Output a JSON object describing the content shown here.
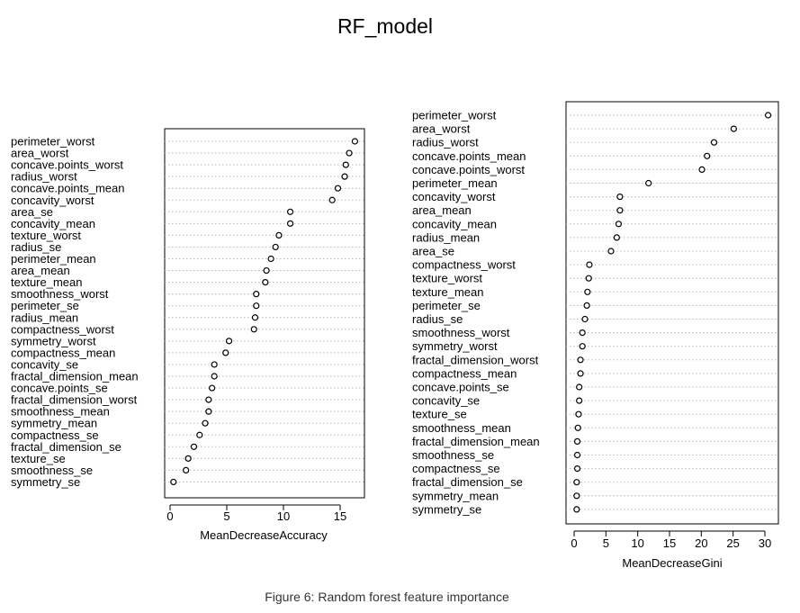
{
  "title": "RF_model",
  "caption": "Figure 6: Random forest feature importance",
  "chart_data": [
    {
      "type": "scatter",
      "subtype": "dotchart",
      "xlabel": "MeanDecreaseAccuracy",
      "xlim": [
        0,
        16.5
      ],
      "xticks": [
        0,
        5,
        10,
        15
      ],
      "grid": "dotted horizontal",
      "categories": [
        "perimeter_worst",
        "area_worst",
        "concave.points_worst",
        "radius_worst",
        "concave.points_mean",
        "concavity_worst",
        "area_se",
        "concavity_mean",
        "texture_worst",
        "radius_se",
        "perimeter_mean",
        "area_mean",
        "texture_mean",
        "smoothness_worst",
        "perimeter_se",
        "radius_mean",
        "compactness_worst",
        "symmetry_worst",
        "compactness_mean",
        "concavity_se",
        "fractal_dimension_mean",
        "concave.points_se",
        "fractal_dimension_worst",
        "smoothness_mean",
        "symmetry_mean",
        "compactness_se",
        "fractal_dimension_se",
        "texture_se",
        "smoothness_se",
        "symmetry_se"
      ],
      "values": [
        16.3,
        15.8,
        15.5,
        15.4,
        14.8,
        14.3,
        10.6,
        10.6,
        9.6,
        9.3,
        8.9,
        8.5,
        8.4,
        7.6,
        7.6,
        7.5,
        7.4,
        5.2,
        4.9,
        3.9,
        3.9,
        3.7,
        3.4,
        3.4,
        3.1,
        2.6,
        2.1,
        1.6,
        1.4,
        0.3
      ]
    },
    {
      "type": "scatter",
      "subtype": "dotchart",
      "xlabel": "MeanDecreaseGini",
      "xlim": [
        0,
        31
      ],
      "xticks": [
        0,
        5,
        10,
        15,
        20,
        25,
        30
      ],
      "grid": "dotted horizontal",
      "categories": [
        "perimeter_worst",
        "area_worst",
        "radius_worst",
        "concave.points_mean",
        "concave.points_worst",
        "perimeter_mean",
        "concavity_worst",
        "area_mean",
        "concavity_mean",
        "radius_mean",
        "area_se",
        "compactness_worst",
        "texture_worst",
        "texture_mean",
        "perimeter_se",
        "radius_se",
        "smoothness_worst",
        "symmetry_worst",
        "fractal_dimension_worst",
        "compactness_mean",
        "concave.points_se",
        "concavity_se",
        "texture_se",
        "smoothness_mean",
        "fractal_dimension_mean",
        "smoothness_se",
        "compactness_se",
        "fractal_dimension_se",
        "symmetry_mean",
        "symmetry_se"
      ],
      "values": [
        30.5,
        25.1,
        22.0,
        20.9,
        20.1,
        11.7,
        7.2,
        7.2,
        7.0,
        6.7,
        5.8,
        2.4,
        2.3,
        2.1,
        2.0,
        1.7,
        1.3,
        1.3,
        1.0,
        1.0,
        0.8,
        0.8,
        0.7,
        0.6,
        0.5,
        0.5,
        0.5,
        0.4,
        0.4,
        0.4
      ]
    }
  ]
}
